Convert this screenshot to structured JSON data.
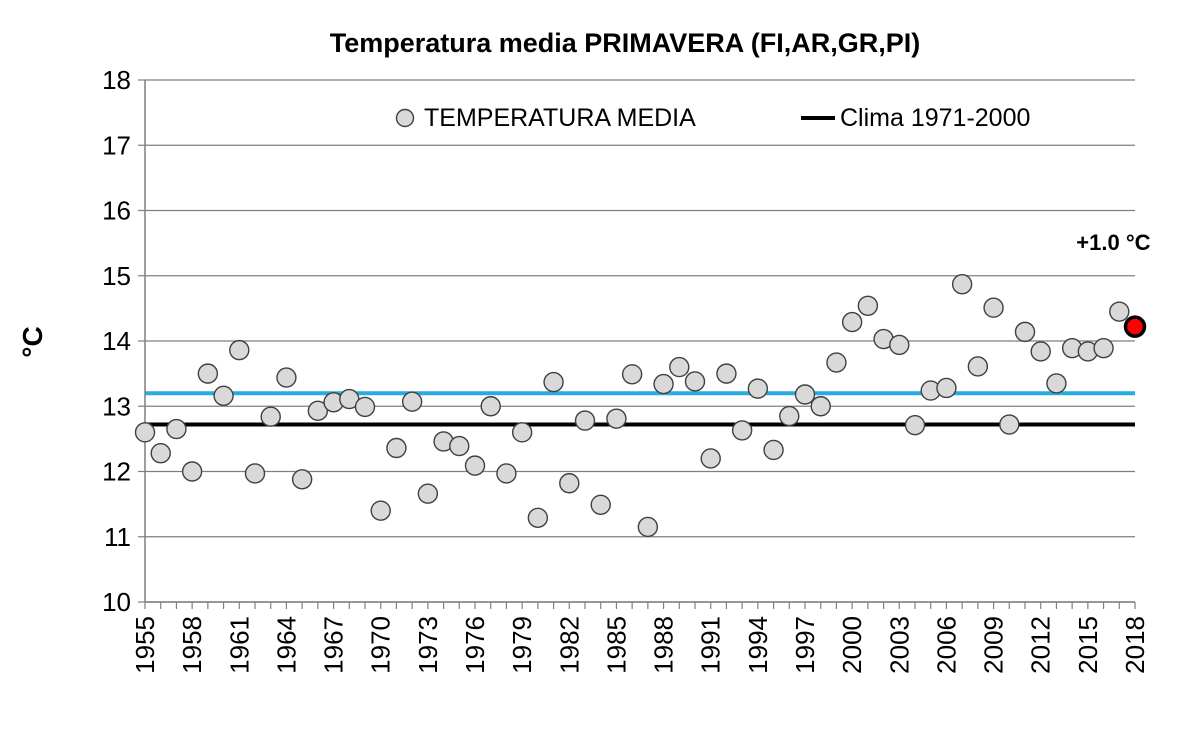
{
  "chart_data": {
    "type": "scatter",
    "title": "Temperatura media PRIMAVERA (FI,AR,GR,PI)",
    "xlabel": "",
    "ylabel": "°C",
    "ylim": [
      10,
      18
    ],
    "xlim": [
      1955,
      2018
    ],
    "y_ticks": [
      "10",
      "11",
      "12",
      "13",
      "14",
      "15",
      "16",
      "17",
      "18"
    ],
    "x_ticks": [
      "1955",
      "1958",
      "1961",
      "1964",
      "1967",
      "1970",
      "1973",
      "1976",
      "1979",
      "1982",
      "1985",
      "1988",
      "1991",
      "1994",
      "1997",
      "2000",
      "2003",
      "2006",
      "2009",
      "2012",
      "2015",
      "2018"
    ],
    "grid": "horizontal",
    "legend_position": "top",
    "series": [
      {
        "name": "TEMPERATURA MEDIA",
        "marker": "circle",
        "color": "#d9d9d9",
        "edge_color": "#404040",
        "x": [
          1955,
          1956,
          1957,
          1958,
          1959,
          1960,
          1961,
          1962,
          1963,
          1964,
          1965,
          1966,
          1967,
          1968,
          1969,
          1970,
          1971,
          1972,
          1973,
          1974,
          1975,
          1976,
          1977,
          1978,
          1979,
          1980,
          1981,
          1982,
          1983,
          1984,
          1985,
          1986,
          1987,
          1988,
          1989,
          1990,
          1991,
          1992,
          1993,
          1994,
          1995,
          1996,
          1997,
          1998,
          1999,
          2000,
          2001,
          2002,
          2003,
          2004,
          2005,
          2006,
          2007,
          2008,
          2009,
          2010,
          2011,
          2012,
          2013,
          2014,
          2015,
          2016,
          2017
        ],
        "y": [
          12.6,
          12.28,
          12.65,
          12.0,
          13.5,
          13.16,
          13.86,
          11.97,
          12.84,
          13.44,
          11.88,
          12.93,
          13.06,
          13.11,
          12.99,
          11.4,
          12.36,
          13.07,
          11.66,
          12.46,
          12.39,
          12.09,
          13.0,
          11.97,
          12.6,
          11.29,
          13.37,
          11.82,
          12.78,
          11.49,
          12.81,
          13.49,
          11.15,
          13.34,
          13.6,
          13.38,
          12.2,
          13.5,
          12.63,
          13.27,
          12.33,
          12.85,
          13.18,
          13.0,
          13.67,
          14.29,
          14.54,
          14.03,
          13.94,
          12.71,
          13.24,
          13.28,
          14.87,
          13.61,
          14.51,
          12.72,
          14.14,
          13.84,
          13.35,
          13.89,
          13.84,
          13.89,
          14.45
        ]
      },
      {
        "name": "",
        "marker": "circle",
        "color": "#ff0000",
        "edge_color": "#000000",
        "x": [
          2018
        ],
        "y": [
          14.22
        ]
      }
    ],
    "reference_lines": [
      {
        "name": "Clima 1971-2000",
        "y": 12.72,
        "color": "#000000"
      },
      {
        "name": "",
        "y": 13.2,
        "color": "#29abe2"
      }
    ],
    "annotations": [
      {
        "text": "+1.0 °C",
        "x": 2017,
        "y": 15.27
      }
    ]
  }
}
